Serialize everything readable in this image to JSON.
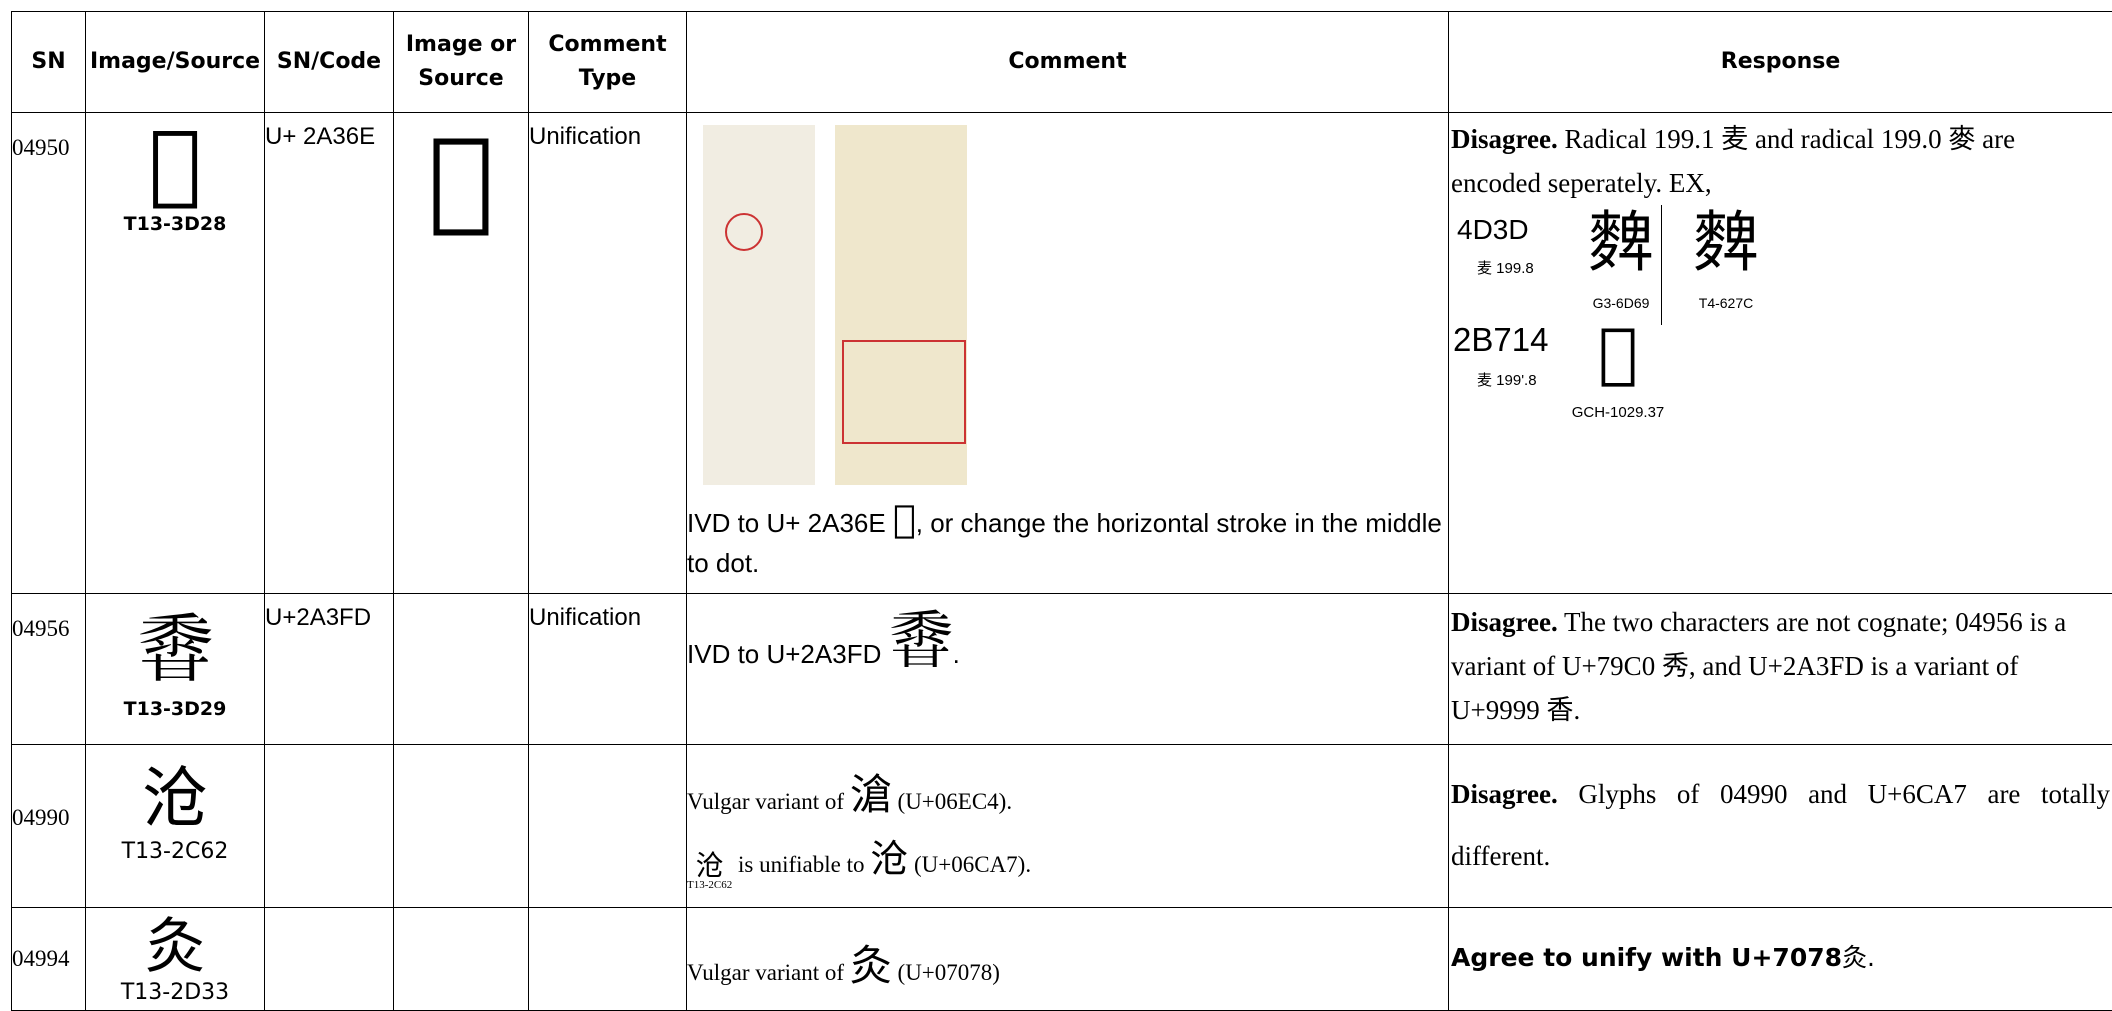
{
  "table": {
    "columns": [
      "SN",
      "Image/Source",
      "SN/Code",
      "Image or Source",
      "Comment Type",
      "Comment",
      "Response"
    ],
    "rows": [
      {
        "sn": "04950",
        "glyph": "𪍮",
        "source": "T13-3D28",
        "code": "U+ 2A36E",
        "image_glyph": "𪍮",
        "type": "Unification",
        "comment": {
          "before": "IVD to U+ 2A36E ",
          "glyph": "𪍮",
          "after": ", or change the horizontal stroke in the middle to dot."
        },
        "response": {
          "lead": "Disagree.",
          "text": " Radical 199.1 麦  and radical 199.0 麥 are encoded seperately. EX,",
          "examples": [
            {
              "code": "4D3D",
              "radical": "麦 199.8",
              "glyphs": [
                {
                  "glyph": "䴽",
                  "source": "G3-6D69"
                },
                {
                  "glyph": "䴽",
                  "source": "T4-627C"
                }
              ]
            },
            {
              "code": "2B714",
              "radical": "麦 199'.8",
              "glyphs": [
                {
                  "glyph": "𫜔",
                  "source": "GCH-1029.37"
                }
              ]
            }
          ]
        }
      },
      {
        "sn": "04956",
        "glyph": "𪏽",
        "source": "T13-3D29",
        "code": "U+2A3FD",
        "type": "Unification",
        "comment": {
          "before": "IVD to U+2A3FD ",
          "glyph": "𪏽",
          "after": "."
        },
        "response": {
          "lead": "Disagree.",
          "text": " The two characters are not cognate; 04956 is a variant of U+79C0 秀, and U+2A3FD is a variant of U+9999 香."
        }
      },
      {
        "sn": "04990",
        "glyph": "沧",
        "source": "T13-2C62",
        "comment": {
          "line1": {
            "before": "Vulgar variant of ",
            "glyph": "滄",
            "after": " (U+06EC4)."
          },
          "line2": {
            "glyph": "沧",
            "source": "T13-2C62",
            "middle": " is unifiable to ",
            "glyph2": "沧",
            "after": " (U+06CA7)."
          }
        },
        "response": {
          "lead": "Disagree.",
          "text": " Glyphs of 04990 and U+6CA7 are totally different."
        }
      },
      {
        "sn": "04994",
        "glyph": "灸",
        "source": "T13-2D33",
        "comment": {
          "before": "Vulgar variant of ",
          "glyph": "灸",
          "after": " (U+07078)"
        },
        "response": {
          "lead": "Agree to unify with U+7078",
          "glyph": "灸",
          "after": "."
        }
      }
    ]
  }
}
